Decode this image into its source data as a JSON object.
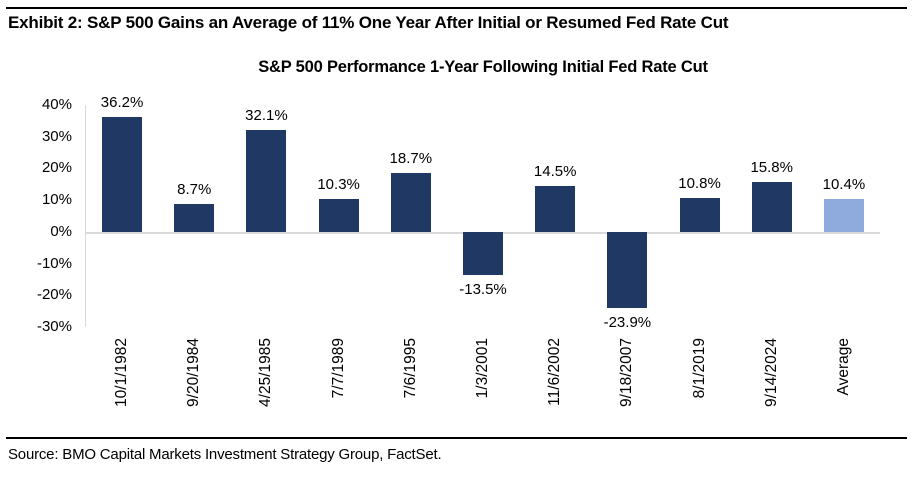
{
  "header": {
    "exhibit_title": "Exhibit 2: S&P 500 Gains an Average of 11% One Year After Initial or Resumed Fed Rate Cut"
  },
  "chart_data": {
    "type": "bar",
    "title": "S&P 500 Performance 1-Year Following Initial Fed Rate Cut",
    "categories": [
      "10/1/1982",
      "9/20/1984",
      "4/25/1985",
      "7/7/1989",
      "7/6/1995",
      "1/3/2001",
      "11/6/2002",
      "9/18/2007",
      "8/1/2019",
      "9/14/2024",
      "Average"
    ],
    "values": [
      36.2,
      8.7,
      32.1,
      10.3,
      18.7,
      -13.5,
      14.5,
      -23.9,
      10.8,
      15.8,
      10.4
    ],
    "value_labels": [
      "36.2%",
      "8.7%",
      "32.1%",
      "10.3%",
      "18.7%",
      "-13.5%",
      "14.5%",
      "-23.9%",
      "10.8%",
      "15.8%",
      "10.4%"
    ],
    "xlabel": "",
    "ylabel": "",
    "ylim": [
      -30,
      40
    ],
    "ytick_step": 10,
    "yticks": [
      "40%",
      "30%",
      "20%",
      "10%",
      "0%",
      "-10%",
      "-20%",
      "-30%"
    ],
    "grid": false,
    "legend": "none",
    "highlight_category": "Average",
    "colors": {
      "bar": "#1F3864",
      "average_bar": "#8FAADC",
      "axis_line": "#D9D9D9",
      "text": "#000000"
    }
  },
  "footer": {
    "source": "Source: BMO Capital Markets Investment Strategy Group, FactSet."
  }
}
